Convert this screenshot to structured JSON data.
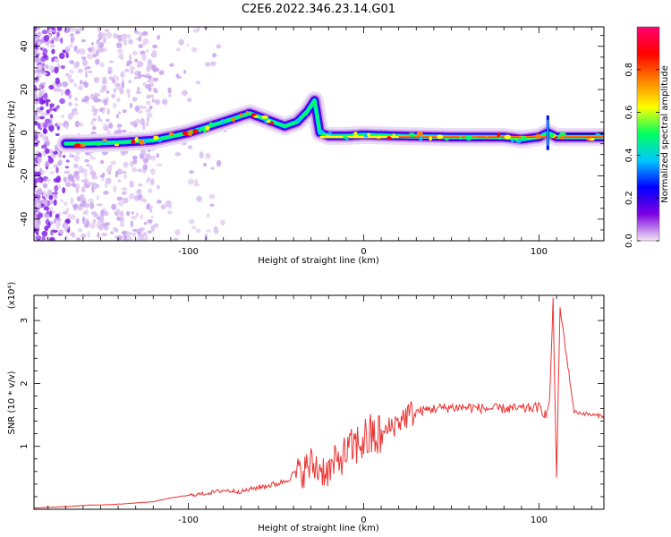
{
  "title": "C2E6.2022.346.23.14.G01",
  "chart_data": [
    {
      "type": "heatmap",
      "xlabel": "Height of straight line (km)",
      "ylabel": "Frequency (Hz)",
      "xlim": [
        -188,
        137
      ],
      "ylim": [
        -50,
        49
      ],
      "xticks": [
        -100,
        0,
        100
      ],
      "xtick_labels": [
        "-100",
        "0",
        "100"
      ],
      "yticks": [
        -40,
        -20,
        0,
        20,
        40
      ],
      "ytick_labels": [
        "-40",
        "-20",
        "0",
        "20",
        "40"
      ],
      "colorbar": {
        "label": "Normalized spectral amplitude",
        "range": [
          0.0,
          1.0
        ],
        "ticks": [
          0.0,
          0.2,
          0.4,
          0.6,
          0.8
        ],
        "tick_labels": [
          "0.0",
          "0.2",
          "0.4",
          "0.6",
          "0.8"
        ],
        "colormap": [
          "#f4e6f7",
          "#7b00e0",
          "#0000ff",
          "#00c8ff",
          "#00ff60",
          "#ffff00",
          "#ff8000",
          "#ff0000",
          "#ff0070"
        ]
      },
      "ridge": {
        "x": [
          -170,
          -160,
          -140,
          -120,
          -100,
          -80,
          -65,
          -55,
          -45,
          -38,
          -32,
          -28,
          -25,
          -20,
          -10,
          0,
          20,
          50,
          80,
          90,
          100,
          105,
          110,
          137
        ],
        "y": [
          -5,
          -5,
          -4.5,
          -3.5,
          0,
          5,
          9,
          6,
          3,
          5,
          10,
          15,
          0,
          -1.5,
          -1.5,
          -1,
          -1.5,
          -2,
          -2,
          -3,
          -2,
          0,
          -2,
          -2
        ]
      },
      "grid": false
    },
    {
      "type": "line",
      "xlabel": "Height of straight line (km)",
      "ylabel": "SNR (10 * v/v)",
      "y_multiplier": "(x10⁴)",
      "xlim": [
        -188,
        137
      ],
      "ylim": [
        0,
        3.4
      ],
      "xticks": [
        -100,
        0,
        100
      ],
      "xtick_labels": [
        "-100",
        "0",
        "100"
      ],
      "yticks": [
        1,
        2,
        3
      ],
      "ytick_labels": [
        "1",
        "2",
        "3"
      ],
      "series": [
        {
          "color": "#ee3333",
          "x": [
            -188,
            -170,
            -160,
            -150,
            -140,
            -130,
            -120,
            -110,
            -100,
            -90,
            -80,
            -70,
            -60,
            -50,
            -45,
            -40,
            -35,
            -30,
            -25,
            -20,
            -15,
            -10,
            -5,
            0,
            5,
            10,
            15,
            20,
            25,
            30,
            40,
            50,
            60,
            70,
            80,
            90,
            100,
            104,
            106,
            108,
            110,
            112,
            120,
            130,
            137
          ],
          "y": [
            0.02,
            0.04,
            0.06,
            0.07,
            0.08,
            0.1,
            0.12,
            0.18,
            0.22,
            0.25,
            0.3,
            0.28,
            0.35,
            0.4,
            0.45,
            0.55,
            0.6,
            0.7,
            0.65,
            0.6,
            0.75,
            0.9,
            1.0,
            1.1,
            1.15,
            1.15,
            1.3,
            1.4,
            1.5,
            1.55,
            1.6,
            1.62,
            1.62,
            1.6,
            1.6,
            1.6,
            1.62,
            1.5,
            1.7,
            3.3,
            0.5,
            3.2,
            1.55,
            1.5,
            1.48
          ]
        }
      ],
      "grid": false
    }
  ]
}
